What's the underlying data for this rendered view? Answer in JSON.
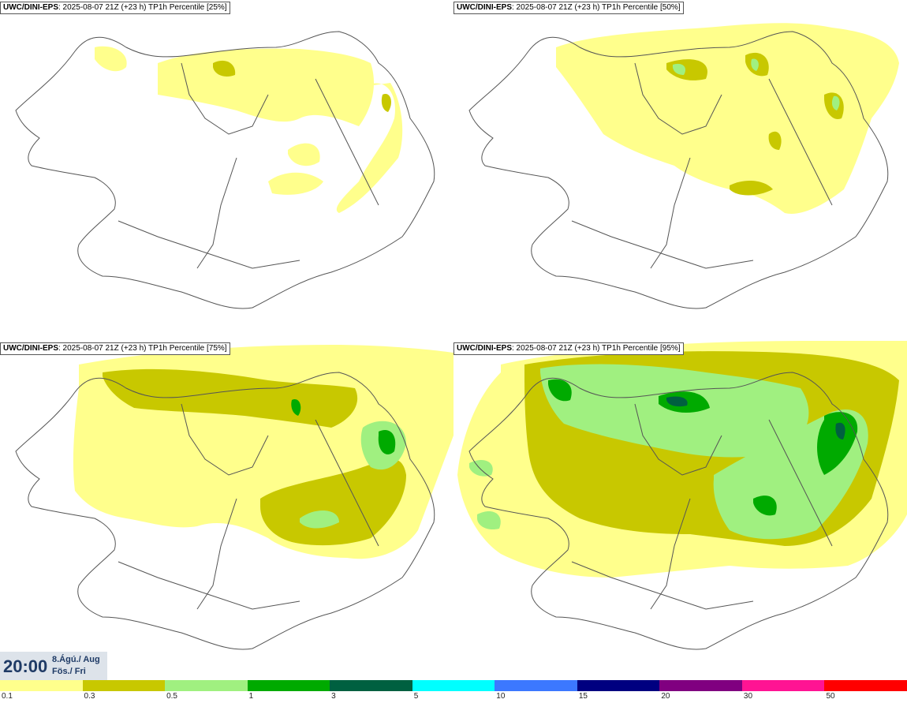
{
  "panels": [
    {
      "model": "UWC/DINI-EPS",
      "detail": ": 2025-08-07 21Z (+23 h) TP1h Percentile [25%]"
    },
    {
      "model": "UWC/DINI-EPS",
      "detail": ": 2025-08-07 21Z (+23 h) TP1h Percentile [50%]"
    },
    {
      "model": "UWC/DINI-EPS",
      "detail": ": 2025-08-07 21Z (+23 h) TP1h Percentile [75%]"
    },
    {
      "model": "UWC/DINI-EPS",
      "detail": ": 2025-08-07 21Z (+23 h) TP1h Percentile [95%]"
    }
  ],
  "time": {
    "clock": "20:00",
    "date": "8.Ágú./ Aug",
    "day": "Fös./ Fri"
  },
  "legend": {
    "labels": [
      "0.1",
      "0.3",
      "0.5",
      "1",
      "3",
      "5",
      "10",
      "15",
      "20",
      "30",
      "50"
    ],
    "colors": [
      "#ffff8c",
      "#c8c800",
      "#a0f080",
      "#00aa00",
      "#006040",
      "#00ffff",
      "#3c78ff",
      "#000080",
      "#800080",
      "#ff1493",
      "#ff0000"
    ]
  }
}
